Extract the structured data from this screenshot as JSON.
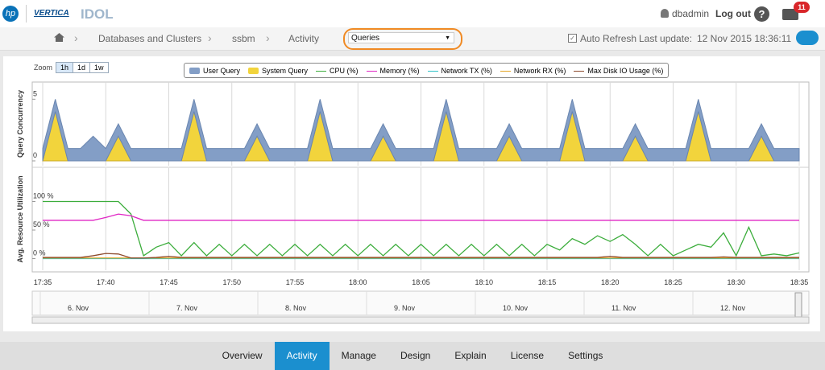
{
  "header": {
    "hp": "hp",
    "vertica": "VERTICA",
    "product": "IDOL",
    "user": "dbadmin",
    "logout": "Log out",
    "help": "?",
    "notifications": "11"
  },
  "breadcrumb": [
    "Databases and Clusters",
    "ssbm",
    "Activity"
  ],
  "selector": "Queries",
  "auto_refresh": "Auto Refresh",
  "last_update_label": "Last update:",
  "last_update": "12 Nov 2015 18:36:11",
  "zoom": {
    "label": "Zoom",
    "options": [
      "1h",
      "1d",
      "1w"
    ],
    "active": "1h"
  },
  "chart_data": [
    {
      "type": "area",
      "stacked": true,
      "y_label": "Query Concurrency",
      "ylim": [
        0,
        6
      ],
      "yticks": [
        0,
        5
      ],
      "series": [
        {
          "name": "User Query",
          "color": "#839ec6",
          "values": [
            1,
            1,
            1,
            1,
            2,
            1,
            1,
            1,
            1,
            1,
            1,
            1,
            1,
            1,
            1,
            1,
            1,
            1,
            1,
            1,
            1,
            1,
            1,
            1,
            1,
            1,
            1,
            1,
            1,
            1,
            1,
            1,
            1,
            1,
            1,
            1,
            1,
            1,
            1,
            1,
            1,
            1,
            1,
            1,
            1,
            1,
            1,
            1,
            1,
            1,
            1,
            1,
            1,
            1,
            1,
            1,
            1,
            1,
            1,
            1,
            1
          ]
        },
        {
          "name": "System Query",
          "color": "#f2d43c",
          "values": [
            0,
            4,
            0,
            0,
            0,
            0,
            2,
            0,
            0,
            0,
            0,
            0,
            4,
            0,
            0,
            0,
            0,
            2,
            0,
            0,
            0,
            0,
            4,
            0,
            0,
            0,
            0,
            2,
            0,
            0,
            0,
            0,
            4,
            0,
            0,
            0,
            0,
            2,
            0,
            0,
            0,
            0,
            4,
            0,
            0,
            0,
            0,
            2,
            0,
            0,
            0,
            0,
            4,
            0,
            0,
            0,
            0,
            2,
            0,
            0,
            0
          ]
        }
      ]
    },
    {
      "type": "line",
      "y_label": "Avg. Resource Utilization",
      "ylim": [
        -12,
        150
      ],
      "yticks": [
        {
          "value": 0,
          "label": "0 %"
        },
        {
          "value": 50,
          "label": "50 %"
        },
        {
          "value": 100,
          "label": "100 %"
        }
      ],
      "categories": [
        "17:35",
        null,
        null,
        null,
        null,
        "17:40",
        null,
        null,
        null,
        null,
        "17:45",
        null,
        null,
        null,
        null,
        "17:50",
        null,
        null,
        null,
        null,
        "17:55",
        null,
        null,
        null,
        null,
        "18:00",
        null,
        null,
        null,
        null,
        "18:05",
        null,
        null,
        null,
        null,
        "18:10",
        null,
        null,
        null,
        null,
        "18:15",
        null,
        null,
        null,
        null,
        "18:20",
        null,
        null,
        null,
        null,
        "18:25",
        null,
        null,
        null,
        null,
        "18:30",
        null,
        null,
        null,
        null,
        "18:35"
      ],
      "series": [
        {
          "name": "CPU (%)",
          "color": "#3cad3c",
          "values": [
            100,
            100,
            100,
            100,
            100,
            100,
            100,
            78,
            5,
            20,
            28,
            5,
            28,
            5,
            25,
            5,
            25,
            5,
            25,
            5,
            25,
            5,
            25,
            5,
            25,
            5,
            25,
            5,
            25,
            5,
            25,
            5,
            25,
            5,
            25,
            5,
            25,
            5,
            25,
            5,
            25,
            15,
            35,
            25,
            40,
            30,
            42,
            25,
            5,
            25,
            5,
            15,
            25,
            20,
            45,
            5,
            55,
            5,
            8,
            5,
            10
          ]
        },
        {
          "name": "Memory (%)",
          "color": "#e026c4",
          "values": [
            67,
            67,
            67,
            67,
            67,
            72,
            78,
            75,
            67,
            67,
            67,
            67,
            67,
            67,
            67,
            67,
            67,
            67,
            67,
            67,
            67,
            67,
            67,
            67,
            67,
            67,
            67,
            67,
            67,
            67,
            67,
            67,
            67,
            67,
            67,
            67,
            67,
            67,
            67,
            67,
            67,
            67,
            67,
            67,
            67,
            67,
            67,
            67,
            67,
            67,
            67,
            67,
            67,
            67,
            67,
            67,
            67,
            67,
            67,
            67,
            67
          ]
        },
        {
          "name": "Network TX (%)",
          "color": "#2fc2c8",
          "values": [
            0,
            0,
            0,
            0,
            0,
            0,
            0,
            0,
            0,
            0,
            0,
            0,
            0,
            0,
            0,
            0,
            0,
            0,
            0,
            0,
            0,
            0,
            0,
            0,
            0,
            0,
            0,
            0,
            0,
            0,
            0,
            0,
            0,
            0,
            0,
            0,
            0,
            0,
            0,
            0,
            0,
            0,
            0,
            0,
            0,
            0,
            0,
            0,
            0,
            0,
            0,
            0,
            0,
            0,
            0,
            0,
            0,
            0,
            0,
            0,
            0
          ]
        },
        {
          "name": "Network RX (%)",
          "color": "#e4a424",
          "values": [
            1,
            1,
            1,
            1,
            1,
            1,
            1,
            1,
            1,
            1,
            1,
            1,
            1,
            1,
            1,
            1,
            1,
            1,
            1,
            1,
            1,
            1,
            1,
            1,
            1,
            1,
            1,
            1,
            1,
            1,
            1,
            1,
            1,
            1,
            1,
            1,
            1,
            1,
            1,
            1,
            1,
            1,
            1,
            1,
            1,
            1,
            1,
            1,
            1,
            1,
            1,
            1,
            1,
            1,
            1,
            1,
            1,
            1,
            1,
            1,
            1
          ]
        },
        {
          "name": "Max Disk IO Usage (%)",
          "color": "#8c4a2c",
          "values": [
            2,
            2,
            2,
            2,
            5,
            9,
            8,
            1,
            1,
            2,
            4,
            2,
            2,
            2,
            2,
            2,
            2,
            2,
            2,
            2,
            2,
            2,
            2,
            2,
            2,
            2,
            2,
            2,
            2,
            2,
            2,
            2,
            2,
            2,
            2,
            2,
            2,
            2,
            2,
            2,
            2,
            2,
            2,
            2,
            2,
            4,
            2,
            2,
            2,
            2,
            2,
            2,
            2,
            2,
            3,
            2,
            2,
            2,
            2,
            2,
            2
          ]
        }
      ]
    }
  ],
  "navigator": {
    "labels": [
      "6. Nov",
      "7. Nov",
      "8. Nov",
      "9. Nov",
      "10. Nov",
      "11. Nov",
      "12. Nov"
    ]
  },
  "tabs": {
    "items": [
      "Overview",
      "Activity",
      "Manage",
      "Design",
      "Explain",
      "License",
      "Settings"
    ],
    "active": "Activity"
  }
}
